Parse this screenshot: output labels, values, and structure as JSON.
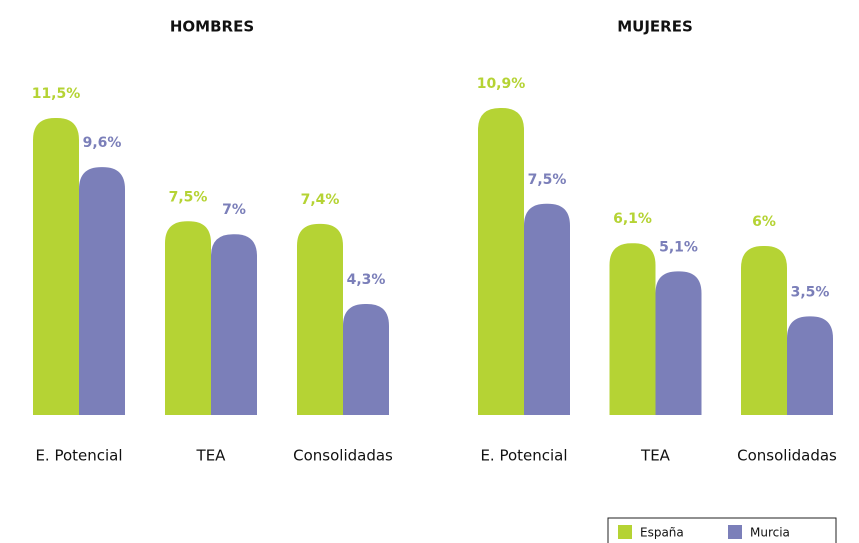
{
  "chart_data": [
    {
      "type": "bar",
      "title": "HOMBRES",
      "categories": [
        "E. Potencial",
        "TEA",
        "Consolidadas"
      ],
      "series": [
        {
          "name": "España",
          "color": "#b5d334",
          "values": [
            11.5,
            7.5,
            7.4
          ],
          "value_labels": [
            "11,5%",
            "7,5%",
            "7,4%"
          ]
        },
        {
          "name": "Murcia",
          "color": "#7b7fb9",
          "values": [
            9.6,
            7,
            4.3
          ],
          "value_labels": [
            "9,6%",
            "7%",
            "4,3%"
          ]
        }
      ]
    },
    {
      "type": "bar",
      "title": "MUJERES",
      "categories": [
        "E. Potencial",
        "TEA",
        "Consolidadas"
      ],
      "series": [
        {
          "name": "España",
          "color": "#b5d334",
          "values": [
            10.9,
            6.1,
            6
          ],
          "value_labels": [
            "10,9%",
            "6,1%",
            "6%"
          ]
        },
        {
          "name": "Murcia",
          "color": "#7b7fb9",
          "values": [
            7.5,
            5.1,
            3.5
          ],
          "value_labels": [
            "7,5%",
            "5,1%",
            "3,5%"
          ]
        }
      ]
    }
  ]
}
